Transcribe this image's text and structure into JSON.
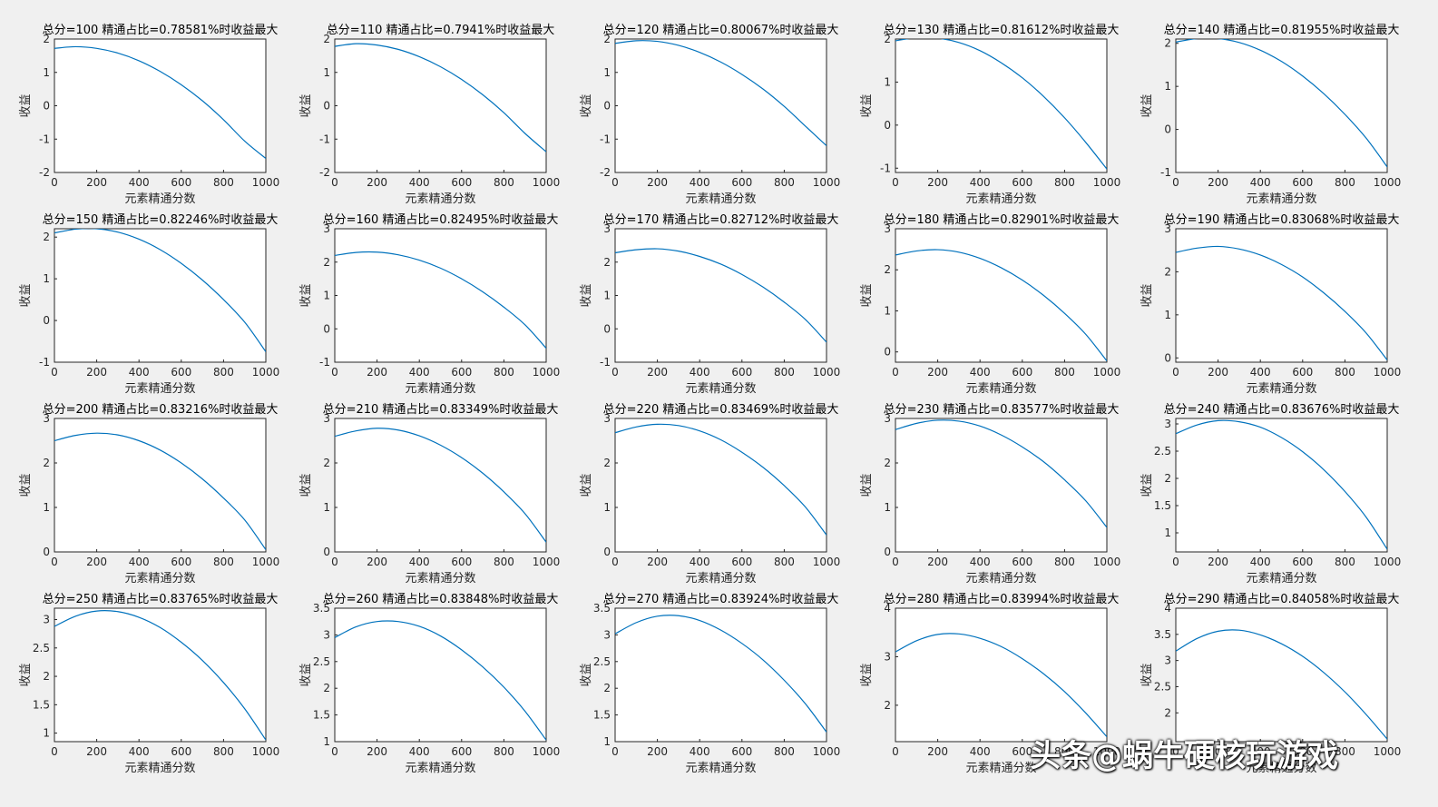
{
  "watermark": "头条@蜗牛硬核玩游戏",
  "chart_data": [
    {
      "type": "line",
      "title": "总分=100  精通占比=0.78581%时收益最大",
      "xlabel": "元素精通分数",
      "ylabel": "收益",
      "xlim": [
        0,
        1000
      ],
      "ylim": [
        -2,
        2
      ],
      "yticks": [
        "-2",
        "-1",
        "0",
        "1",
        "2"
      ],
      "xticks": [
        "0",
        "200",
        "400",
        "600",
        "800",
        "1000"
      ],
      "x": [
        0,
        100,
        200,
        300,
        400,
        500,
        600,
        700,
        800,
        900,
        1000
      ],
      "y": [
        1.72,
        1.77,
        1.72,
        1.58,
        1.35,
        1.03,
        0.63,
        0.15,
        -0.42,
        -1.06,
        -1.58
      ]
    },
    {
      "type": "line",
      "title": "总分=110  精通占比=0.7941%时收益最大",
      "xlabel": "元素精通分数",
      "ylabel": "收益",
      "xlim": [
        0,
        1000
      ],
      "ylim": [
        -2,
        2
      ],
      "yticks": [
        "-2",
        "-1",
        "0",
        "1",
        "2"
      ],
      "xticks": [
        "0",
        "200",
        "400",
        "600",
        "800",
        "1000"
      ],
      "x": [
        0,
        100,
        200,
        300,
        400,
        500,
        600,
        700,
        800,
        900,
        1000
      ],
      "y": [
        1.78,
        1.86,
        1.82,
        1.69,
        1.47,
        1.17,
        0.79,
        0.33,
        -0.21,
        -0.83,
        -1.38
      ]
    },
    {
      "type": "line",
      "title": "总分=120  精通占比=0.80067%时收益最大",
      "xlabel": "元素精通分数",
      "ylabel": "收益",
      "xlim": [
        0,
        1000
      ],
      "ylim": [
        -2,
        2
      ],
      "yticks": [
        "-2",
        "-1",
        "0",
        "1",
        "2"
      ],
      "xticks": [
        "0",
        "200",
        "400",
        "600",
        "800",
        "1000"
      ],
      "x": [
        0,
        100,
        200,
        300,
        400,
        500,
        600,
        700,
        800,
        900,
        1000
      ],
      "y": [
        1.87,
        1.95,
        1.93,
        1.81,
        1.6,
        1.31,
        0.94,
        0.5,
        -0.02,
        -0.61,
        -1.2
      ]
    },
    {
      "type": "line",
      "title": "总分=130  精通占比=0.81612%时收益最大",
      "xlabel": "元素精通分数",
      "ylabel": "收益",
      "xlim": [
        0,
        1000
      ],
      "ylim": [
        -1.1,
        2
      ],
      "yticks": [
        "-1",
        "0",
        "1",
        "2"
      ],
      "xticks": [
        "0",
        "200",
        "400",
        "600",
        "800",
        "1000"
      ],
      "x": [
        0,
        100,
        200,
        300,
        400,
        500,
        600,
        700,
        800,
        900,
        1000
      ],
      "y": [
        1.96,
        2.03,
        2.02,
        1.92,
        1.73,
        1.45,
        1.1,
        0.67,
        0.17,
        -0.4,
        -1.02
      ]
    },
    {
      "type": "line",
      "title": "总分=140  精通占比=0.81955%时收益最大",
      "xlabel": "元素精通分数",
      "ylabel": "收益",
      "xlim": [
        0,
        1000
      ],
      "ylim": [
        -1,
        2.1
      ],
      "yticks": [
        "-1",
        "0",
        "1",
        "2"
      ],
      "xticks": [
        "0",
        "200",
        "400",
        "600",
        "800",
        "1000"
      ],
      "x": [
        0,
        100,
        200,
        300,
        400,
        500,
        600,
        700,
        800,
        900,
        1000
      ],
      "y": [
        2.03,
        2.11,
        2.11,
        2.02,
        1.84,
        1.58,
        1.24,
        0.83,
        0.35,
        -0.2,
        -0.87
      ]
    },
    {
      "type": "line",
      "title": "总分=150  精通占比=0.82246%时收益最大",
      "xlabel": "元素精通分数",
      "ylabel": "收益",
      "xlim": [
        0,
        1000
      ],
      "ylim": [
        -1,
        2.2
      ],
      "yticks": [
        "-1",
        "0",
        "1",
        "2"
      ],
      "xticks": [
        "0",
        "200",
        "400",
        "600",
        "800",
        "1000"
      ],
      "x": [
        0,
        100,
        200,
        300,
        400,
        500,
        600,
        700,
        800,
        900,
        1000
      ],
      "y": [
        2.1,
        2.19,
        2.2,
        2.12,
        1.95,
        1.7,
        1.37,
        0.97,
        0.5,
        -0.04,
        -0.75
      ]
    },
    {
      "type": "line",
      "title": "总分=160  精通占比=0.82495%时收益最大",
      "xlabel": "元素精通分数",
      "ylabel": "收益",
      "xlim": [
        0,
        1000
      ],
      "ylim": [
        -1,
        3
      ],
      "yticks": [
        "-1",
        "0",
        "1",
        "2",
        "3"
      ],
      "xticks": [
        "0",
        "200",
        "400",
        "600",
        "800",
        "1000"
      ],
      "x": [
        0,
        100,
        200,
        300,
        400,
        500,
        600,
        700,
        800,
        900,
        1000
      ],
      "y": [
        2.2,
        2.29,
        2.3,
        2.22,
        2.06,
        1.82,
        1.5,
        1.11,
        0.65,
        0.12,
        -0.58
      ]
    },
    {
      "type": "line",
      "title": "总分=170  精通占比=0.82712%时收益最大",
      "xlabel": "元素精通分数",
      "ylabel": "收益",
      "xlim": [
        0,
        1000
      ],
      "ylim": [
        -1,
        3
      ],
      "yticks": [
        "-1",
        "0",
        "1",
        "2",
        "3"
      ],
      "xticks": [
        "0",
        "200",
        "400",
        "600",
        "800",
        "1000"
      ],
      "x": [
        0,
        100,
        200,
        300,
        400,
        500,
        600,
        700,
        800,
        900,
        1000
      ],
      "y": [
        2.28,
        2.37,
        2.4,
        2.33,
        2.17,
        1.94,
        1.63,
        1.25,
        0.8,
        0.28,
        -0.4
      ]
    },
    {
      "type": "line",
      "title": "总分=180  精通占比=0.82901%时收益最大",
      "xlabel": "元素精通分数",
      "ylabel": "收益",
      "xlim": [
        0,
        1000
      ],
      "ylim": [
        -0.25,
        3
      ],
      "yticks": [
        "0",
        "1",
        "2",
        "3"
      ],
      "xticks": [
        "0",
        "200",
        "400",
        "600",
        "800",
        "1000"
      ],
      "x": [
        0,
        100,
        200,
        300,
        400,
        500,
        600,
        700,
        800,
        900,
        1000
      ],
      "y": [
        2.36,
        2.46,
        2.49,
        2.43,
        2.28,
        2.05,
        1.75,
        1.38,
        0.94,
        0.43,
        -0.22
      ]
    },
    {
      "type": "line",
      "title": "总分=190  精通占比=0.83068%时收益最大",
      "xlabel": "元素精通分数",
      "ylabel": "收益",
      "xlim": [
        0,
        1000
      ],
      "ylim": [
        -0.1,
        3
      ],
      "yticks": [
        "0",
        "1",
        "2",
        "3"
      ],
      "xticks": [
        "0",
        "200",
        "400",
        "600",
        "800",
        "1000"
      ],
      "x": [
        0,
        100,
        200,
        300,
        400,
        500,
        600,
        700,
        800,
        900,
        1000
      ],
      "y": [
        2.45,
        2.55,
        2.59,
        2.53,
        2.39,
        2.17,
        1.88,
        1.51,
        1.08,
        0.58,
        -0.05
      ]
    },
    {
      "type": "line",
      "title": "总分=200  精通占比=0.83216%时收益最大",
      "xlabel": "元素精通分数",
      "ylabel": "收益",
      "xlim": [
        0,
        1000
      ],
      "ylim": [
        0,
        3
      ],
      "yticks": [
        "0",
        "1",
        "2",
        "3"
      ],
      "xticks": [
        "0",
        "200",
        "400",
        "600",
        "800",
        "1000"
      ],
      "x": [
        0,
        100,
        200,
        300,
        400,
        500,
        600,
        700,
        800,
        900,
        1000
      ],
      "y": [
        2.5,
        2.62,
        2.67,
        2.63,
        2.5,
        2.29,
        2.0,
        1.64,
        1.21,
        0.72,
        0.05
      ]
    },
    {
      "type": "line",
      "title": "总分=210  精通占比=0.83349%时收益最大",
      "xlabel": "元素精通分数",
      "ylabel": "收益",
      "xlim": [
        0,
        1000
      ],
      "ylim": [
        0,
        3
      ],
      "yticks": [
        "0",
        "1",
        "2",
        "3"
      ],
      "xticks": [
        "0",
        "200",
        "400",
        "600",
        "800",
        "1000"
      ],
      "x": [
        0,
        100,
        200,
        300,
        400,
        500,
        600,
        700,
        800,
        900,
        1000
      ],
      "y": [
        2.6,
        2.72,
        2.78,
        2.74,
        2.61,
        2.4,
        2.12,
        1.77,
        1.35,
        0.86,
        0.22
      ]
    },
    {
      "type": "line",
      "title": "总分=220  精通占比=0.83469%时收益最大",
      "xlabel": "元素精通分数",
      "ylabel": "收益",
      "xlim": [
        0,
        1000
      ],
      "ylim": [
        0,
        3
      ],
      "yticks": [
        "0",
        "1",
        "2",
        "3"
      ],
      "xticks": [
        "0",
        "200",
        "400",
        "600",
        "800",
        "1000"
      ],
      "x": [
        0,
        100,
        200,
        300,
        400,
        500,
        600,
        700,
        800,
        900,
        1000
      ],
      "y": [
        2.68,
        2.81,
        2.87,
        2.84,
        2.72,
        2.52,
        2.24,
        1.9,
        1.49,
        1.01,
        0.38
      ]
    },
    {
      "type": "line",
      "title": "总分=230  精通占比=0.83577%时收益最大",
      "xlabel": "元素精通分数",
      "ylabel": "收益",
      "xlim": [
        0,
        1000
      ],
      "ylim": [
        0,
        3
      ],
      "yticks": [
        "0",
        "1",
        "2",
        "3"
      ],
      "xticks": [
        "0",
        "200",
        "400",
        "600",
        "800",
        "1000"
      ],
      "x": [
        0,
        100,
        200,
        300,
        400,
        500,
        600,
        700,
        800,
        900,
        1000
      ],
      "y": [
        2.75,
        2.89,
        2.96,
        2.94,
        2.83,
        2.63,
        2.36,
        2.03,
        1.62,
        1.15,
        0.55
      ]
    },
    {
      "type": "line",
      "title": "总分=240  精通占比=0.83676%时收益最大",
      "xlabel": "元素精通分数",
      "ylabel": "收益",
      "xlim": [
        0,
        1000
      ],
      "ylim": [
        0.65,
        3.1
      ],
      "yticks": [
        "1",
        "1.5",
        "2",
        "2.5",
        "3"
      ],
      "xticks": [
        "0",
        "200",
        "400",
        "600",
        "800",
        "1000"
      ],
      "x": [
        0,
        100,
        200,
        300,
        400,
        500,
        600,
        700,
        800,
        900,
        1000
      ],
      "y": [
        2.82,
        2.98,
        3.06,
        3.04,
        2.94,
        2.75,
        2.49,
        2.16,
        1.76,
        1.29,
        0.7
      ]
    },
    {
      "type": "line",
      "title": "总分=250  精通占比=0.83765%时收益最大",
      "xlabel": "元素精通分数",
      "ylabel": "收益",
      "xlim": [
        0,
        1000
      ],
      "ylim": [
        0.85,
        3.2
      ],
      "yticks": [
        "1",
        "1.5",
        "2",
        "2.5",
        "3"
      ],
      "xticks": [
        "0",
        "200",
        "400",
        "600",
        "800",
        "1000"
      ],
      "x": [
        0,
        100,
        200,
        300,
        400,
        500,
        600,
        700,
        800,
        900,
        1000
      ],
      "y": [
        2.88,
        3.06,
        3.15,
        3.14,
        3.04,
        2.86,
        2.6,
        2.28,
        1.89,
        1.43,
        0.88
      ]
    },
    {
      "type": "line",
      "title": "总分=260  精通占比=0.83848%时收益最大",
      "xlabel": "元素精通分数",
      "ylabel": "收益",
      "xlim": [
        0,
        1000
      ],
      "ylim": [
        1,
        3.5
      ],
      "yticks": [
        "1",
        "1.5",
        "2",
        "2.5",
        "3",
        "3.5"
      ],
      "xticks": [
        "0",
        "200",
        "400",
        "600",
        "800",
        "1000"
      ],
      "x": [
        0,
        100,
        200,
        300,
        400,
        500,
        600,
        700,
        800,
        900,
        1000
      ],
      "y": [
        2.95,
        3.15,
        3.25,
        3.25,
        3.16,
        2.98,
        2.72,
        2.4,
        2.02,
        1.57,
        1.03
      ]
    },
    {
      "type": "line",
      "title": "总分=270  精通占比=0.83924%时收益最大",
      "xlabel": "元素精通分数",
      "ylabel": "收益",
      "xlim": [
        0,
        1000
      ],
      "ylim": [
        1,
        3.5
      ],
      "yticks": [
        "1",
        "1.5",
        "2",
        "2.5",
        "3",
        "3.5"
      ],
      "xticks": [
        "0",
        "200",
        "400",
        "600",
        "800",
        "1000"
      ],
      "x": [
        0,
        100,
        200,
        300,
        400,
        500,
        600,
        700,
        800,
        900,
        1000
      ],
      "y": [
        3.02,
        3.23,
        3.35,
        3.36,
        3.27,
        3.09,
        2.84,
        2.53,
        2.15,
        1.71,
        1.18
      ]
    },
    {
      "type": "line",
      "title": "总分=280  精通占比=0.83994%时收益最大",
      "xlabel": "元素精通分数",
      "ylabel": "收益",
      "xlim": [
        0,
        1000
      ],
      "ylim": [
        1.25,
        4
      ],
      "yticks": [
        "2",
        "3",
        "4"
      ],
      "xticks": [
        "0",
        "200",
        "400",
        "600",
        "800",
        "1000"
      ],
      "x": [
        0,
        100,
        200,
        300,
        400,
        500,
        600,
        700,
        800,
        900,
        1000
      ],
      "y": [
        3.1,
        3.33,
        3.46,
        3.47,
        3.38,
        3.21,
        2.96,
        2.65,
        2.28,
        1.84,
        1.35
      ]
    },
    {
      "type": "line",
      "title": "总分=290  精通占比=0.84058%时收益最大",
      "xlabel": "元素精通分数",
      "ylabel": "收益",
      "xlim": [
        0,
        1000
      ],
      "ylim": [
        1.45,
        4
      ],
      "yticks": [
        "2",
        "2.5",
        "3",
        "3.5",
        "4"
      ],
      "xticks": [
        "0",
        "200",
        "400",
        "600",
        "800",
        "1000"
      ],
      "x": [
        0,
        100,
        200,
        300,
        400,
        500,
        600,
        700,
        800,
        900,
        1000
      ],
      "y": [
        3.18,
        3.42,
        3.56,
        3.58,
        3.49,
        3.32,
        3.08,
        2.77,
        2.4,
        1.97,
        1.5
      ]
    }
  ]
}
